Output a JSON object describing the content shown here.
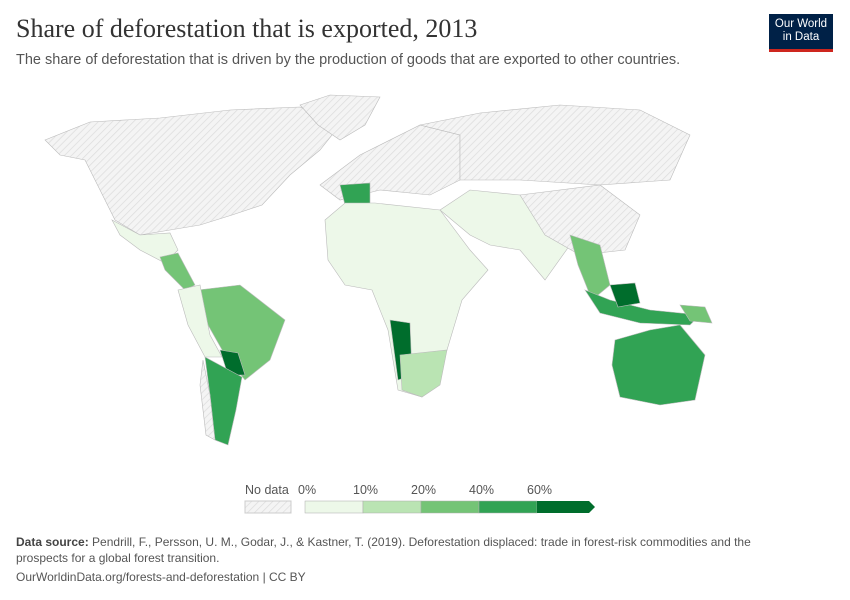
{
  "header": {
    "title": "Share of deforestation that is exported, 2013",
    "subtitle": "The share of deforestation that is driven by the production of goods that are exported to other countries.",
    "logo": "Our World in Data"
  },
  "chart_data": {
    "type": "map",
    "year": 2013,
    "metric": "Share of deforestation that is exported",
    "legend": {
      "no_data_label": "No data",
      "ticks": [
        "0%",
        "10%",
        "20%",
        "40%",
        "60%"
      ],
      "bins": [
        {
          "range": "0-10%",
          "color": "#edf8e9"
        },
        {
          "range": "10-20%",
          "color": "#bae4b3"
        },
        {
          "range": "20-40%",
          "color": "#74c476"
        },
        {
          "range": "40-60%",
          "color": "#31a354"
        },
        {
          "range": ">60%",
          "color": "#006d2c"
        }
      ],
      "no_data_color": "#e8e8e8"
    },
    "regions": [
      {
        "name": "North America",
        "bin": "no-data"
      },
      {
        "name": "Greenland",
        "bin": "no-data"
      },
      {
        "name": "Mexico",
        "bin": "0-10%"
      },
      {
        "name": "Central America",
        "bin": "20-40%"
      },
      {
        "name": "Brazil",
        "bin": "20-40%"
      },
      {
        "name": "Western South America",
        "bin": "0-10%"
      },
      {
        "name": "Paraguay",
        "bin": ">60%"
      },
      {
        "name": "Argentina",
        "bin": "40-60%"
      },
      {
        "name": "Chile",
        "bin": "no-data"
      },
      {
        "name": "Europe",
        "bin": "no-data"
      },
      {
        "name": "Spain",
        "bin": "40-60%"
      },
      {
        "name": "Russia",
        "bin": "no-data"
      },
      {
        "name": "Africa",
        "bin": "0-10%"
      },
      {
        "name": "Namibia",
        "bin": ">60%"
      },
      {
        "name": "Southern Africa",
        "bin": "10-20%"
      },
      {
        "name": "Middle East & South Asia",
        "bin": "0-10%"
      },
      {
        "name": "China",
        "bin": "no-data"
      },
      {
        "name": "Southeast Asia",
        "bin": "20-40%"
      },
      {
        "name": "Indonesia",
        "bin": "40-60%"
      },
      {
        "name": "Borneo (Malaysia)",
        "bin": ">60%"
      },
      {
        "name": "Australia",
        "bin": "40-60%"
      },
      {
        "name": "Papua New Guinea",
        "bin": "20-40%"
      }
    ]
  },
  "footer": {
    "source_label": "Data source:",
    "source_text": " Pendrill, F., Persson, U. M., Godar, J., & Kastner, T. (2019). Deforestation displaced: trade in forest-risk commodities and the prospects for a global forest transition.",
    "url": "OurWorldinData.org/forests-and-deforestation | CC BY"
  }
}
